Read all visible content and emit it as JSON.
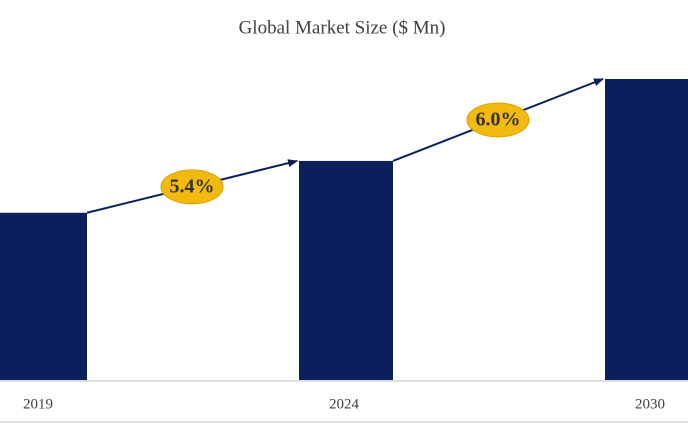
{
  "chart_data": {
    "type": "bar",
    "title": "Global Market Size ($ Mn)",
    "categories": [
      "2019",
      "2024",
      "2030"
    ],
    "values": [
      100,
      131,
      180
    ],
    "color": "#0a1f5c",
    "ylim": [
      0,
      180
    ],
    "annotations": [
      "5.4%",
      "6.0%"
    ]
  }
}
